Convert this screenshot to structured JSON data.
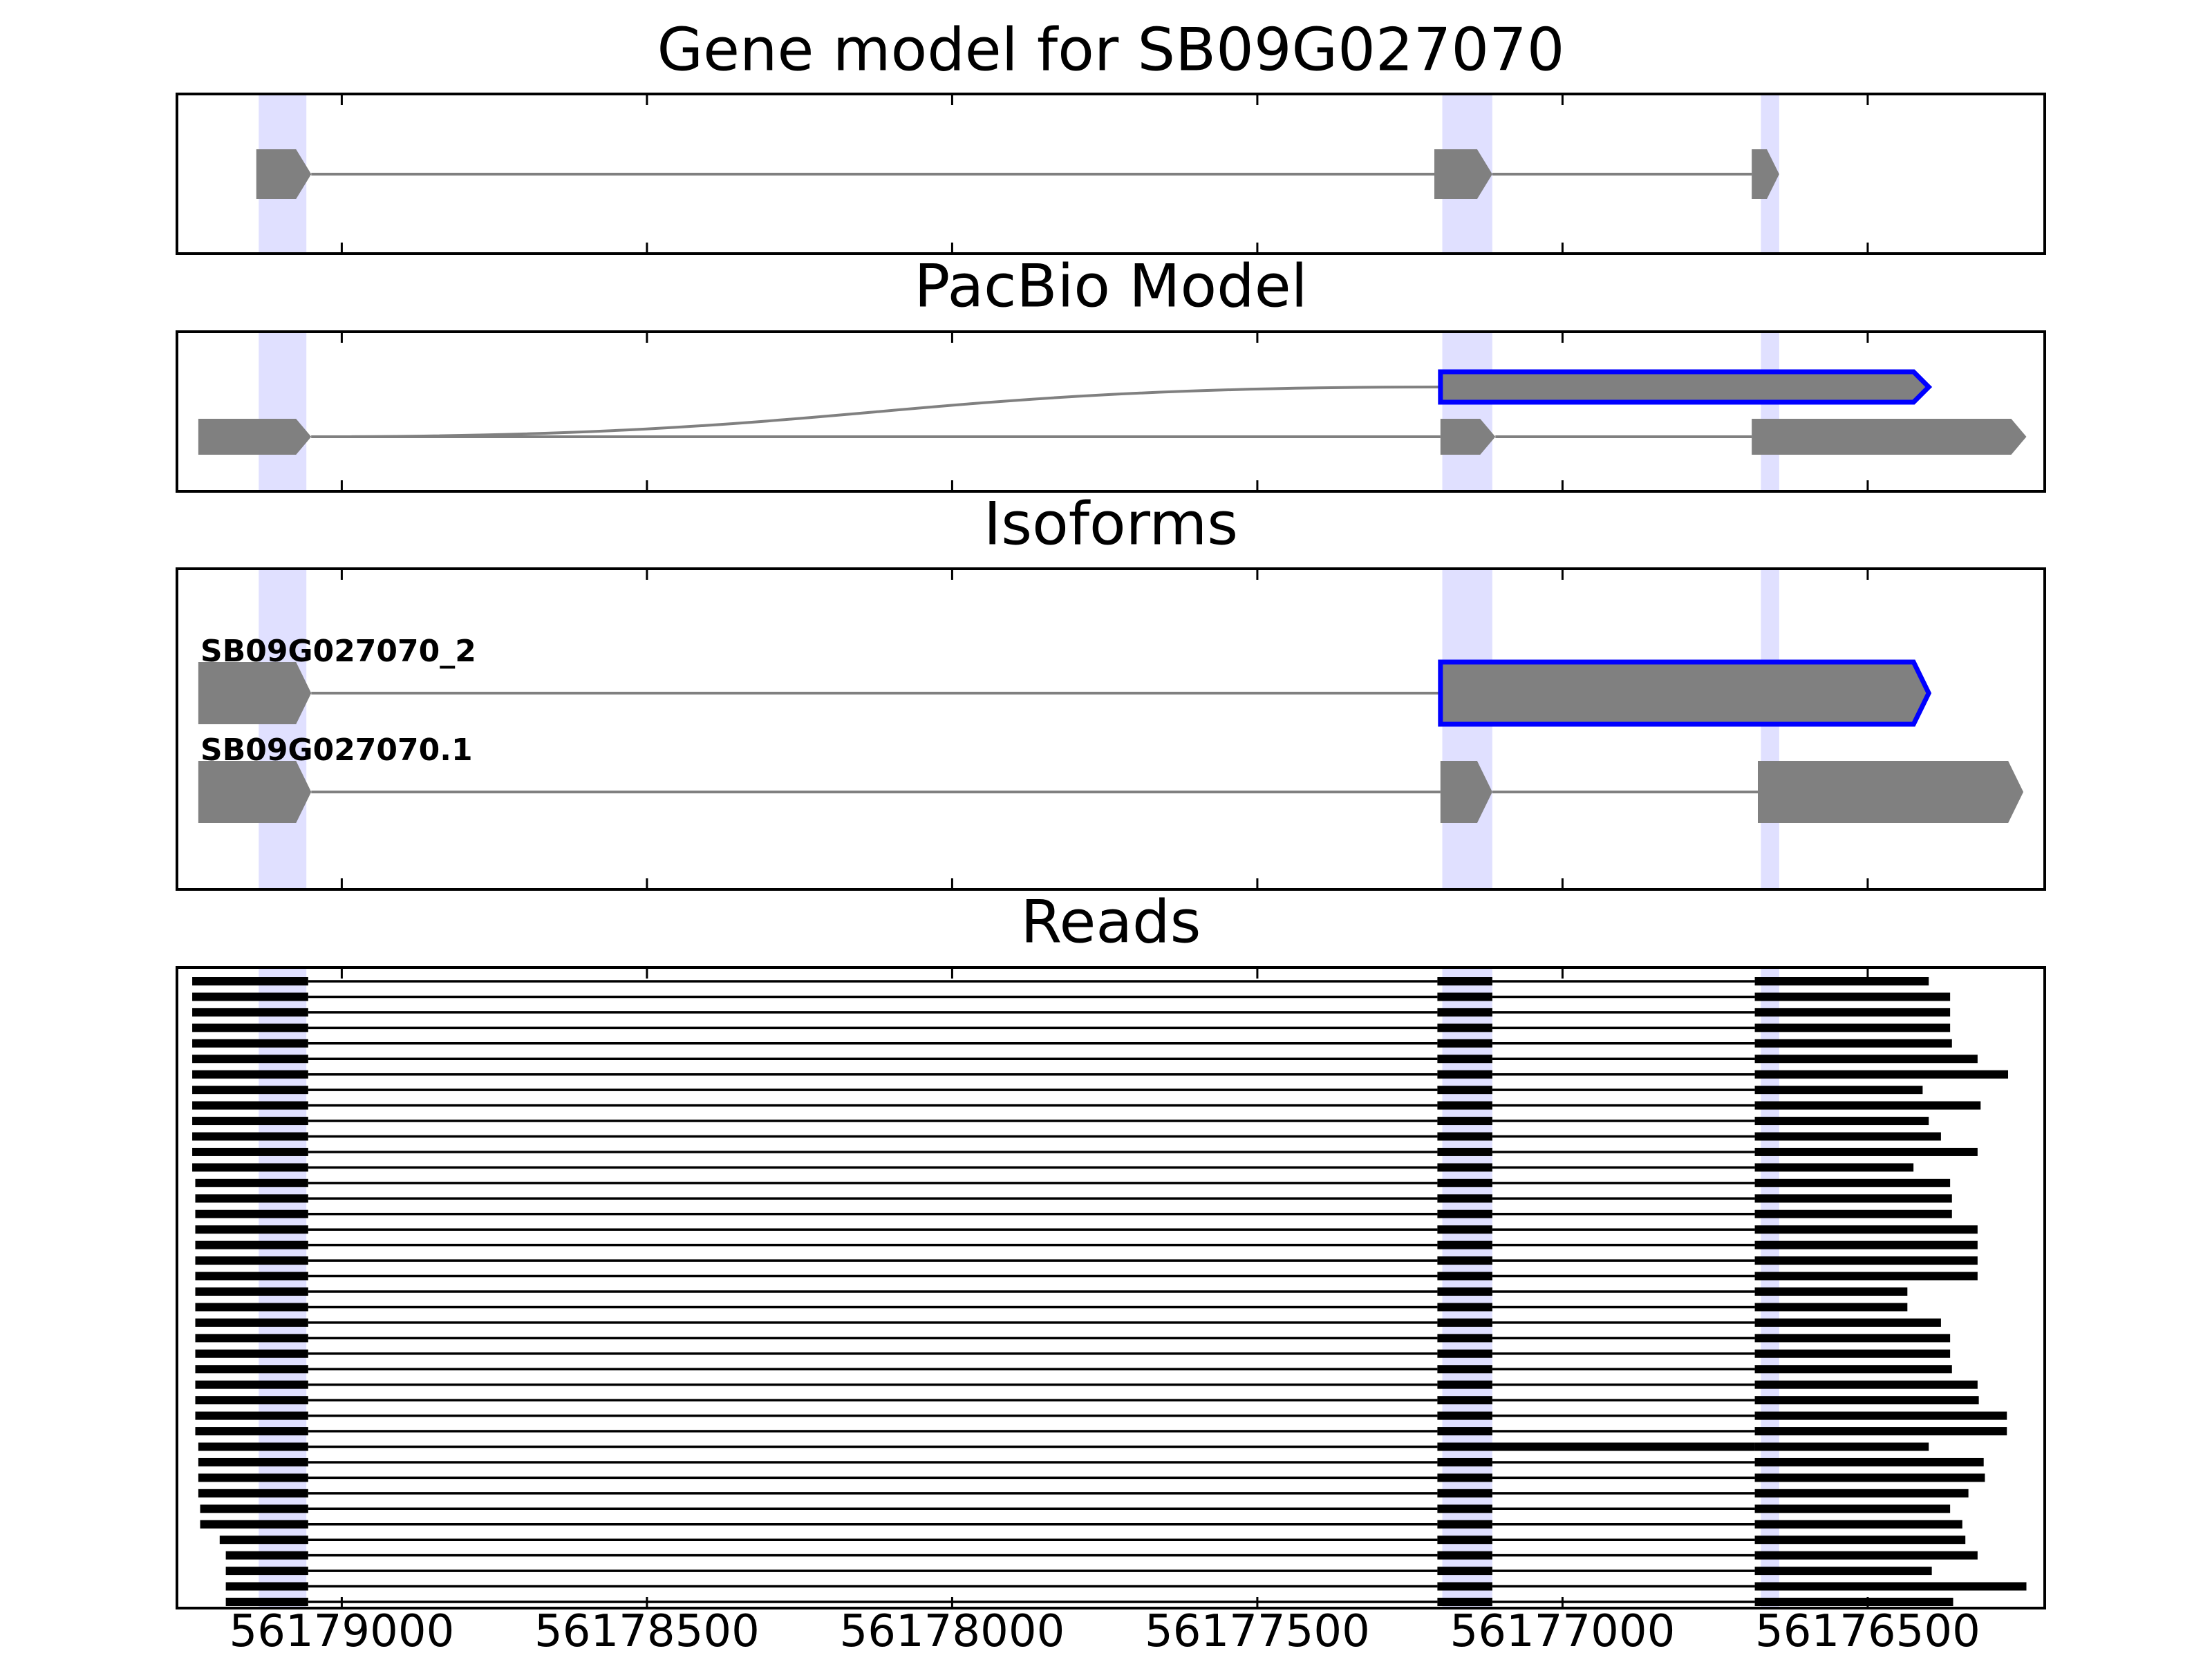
{
  "colors": {
    "exon_fill": "#808080",
    "intron_line": "#808080",
    "highlight_outline": "#0000ff",
    "junction_band": "#e0e0ff",
    "read_color": "#000000",
    "frame": "#000000"
  },
  "chart_data": [
    {
      "type": "gene_model",
      "title": "Gene model for SB09G027070",
      "x_axis": {
        "reversed": true,
        "ticks": [
          56179000,
          56178500,
          56178000,
          56177500,
          56177000,
          56176500
        ]
      },
      "xlim": [
        56179270,
        56176210
      ],
      "junction_bands": [
        [
          56179136,
          56179058
        ],
        [
          56177197,
          56177115
        ],
        [
          56176675,
          56176645
        ]
      ],
      "transcripts": [
        {
          "label": "",
          "highlight": false,
          "exons": [
            [
              56179140,
              56179050
            ],
            [
              56177210,
              56177115
            ],
            [
              56176690,
              56176645
            ]
          ]
        }
      ]
    },
    {
      "type": "pacbio_model",
      "title": "PacBio Model",
      "x_axis": {
        "reversed": true,
        "ticks": [
          56179000,
          56178500,
          56178000,
          56177500,
          56177000,
          56176500
        ]
      },
      "xlim": [
        56179270,
        56176210
      ],
      "junction_bands": [
        [
          56179136,
          56179058
        ],
        [
          56177197,
          56177115
        ],
        [
          56176675,
          56176645
        ]
      ],
      "transcripts": [
        {
          "label": "",
          "highlight": true,
          "curved_from": 56179050,
          "exons": [
            [
              56177200,
              56176400
            ]
          ]
        },
        {
          "label": "",
          "highlight": false,
          "exons": [
            [
              56179235,
              56179050
            ],
            [
              56177200,
              56177110
            ],
            [
              56176690,
              56176240
            ]
          ]
        }
      ]
    },
    {
      "type": "isoforms",
      "title": "Isoforms",
      "x_axis": {
        "reversed": true,
        "ticks": [
          56179000,
          56178500,
          56178000,
          56177500,
          56177000,
          56176500
        ]
      },
      "xlim": [
        56179270,
        56176210
      ],
      "junction_bands": [
        [
          56179136,
          56179058
        ],
        [
          56177197,
          56177115
        ],
        [
          56176675,
          56176645
        ]
      ],
      "transcripts": [
        {
          "label": "SB09G027070_2",
          "highlight": true,
          "exons": [
            [
              56179235,
              56179050
            ],
            [
              56177200,
              56176400
            ]
          ]
        },
        {
          "label": "SB09G027070.1",
          "highlight": false,
          "exons": [
            [
              56179235,
              56179050
            ],
            [
              56177200,
              56177115
            ],
            [
              56176680,
              56176245
            ]
          ]
        }
      ]
    },
    {
      "type": "reads",
      "title": "Reads",
      "x_axis": {
        "reversed": true,
        "ticks": [
          56179000,
          56178500,
          56178000,
          56177500,
          56177000,
          56176500
        ]
      },
      "tick_labels": [
        "56179000",
        "56178500",
        "56178000",
        "56177500",
        "56177000",
        "56176500"
      ],
      "xlim": [
        56179270,
        56176210
      ],
      "junction_bands": [
        [
          56179136,
          56179058
        ],
        [
          56177197,
          56177115
        ],
        [
          56176675,
          56176645
        ]
      ],
      "read_exon2": [
        56177205,
        56177115
      ],
      "read_exon3_start": 56176685,
      "reads": [
        {
          "start": 56179245,
          "end": 56176400
        },
        {
          "start": 56179245,
          "end": 56176365
        },
        {
          "start": 56179245,
          "end": 56176365
        },
        {
          "start": 56179245,
          "end": 56176365
        },
        {
          "start": 56179245,
          "end": 56176362
        },
        {
          "start": 56179245,
          "end": 56176320
        },
        {
          "start": 56179245,
          "end": 56176270
        },
        {
          "start": 56179245,
          "end": 56176410
        },
        {
          "start": 56179245,
          "end": 56176315
        },
        {
          "start": 56179245,
          "end": 56176400
        },
        {
          "start": 56179245,
          "end": 56176380
        },
        {
          "start": 56179245,
          "end": 56176320
        },
        {
          "start": 56179245,
          "end": 56176425
        },
        {
          "start": 56179240,
          "end": 56176365
        },
        {
          "start": 56179240,
          "end": 56176362
        },
        {
          "start": 56179240,
          "end": 56176362
        },
        {
          "start": 56179240,
          "end": 56176320
        },
        {
          "start": 56179240,
          "end": 56176320
        },
        {
          "start": 56179240,
          "end": 56176320
        },
        {
          "start": 56179240,
          "end": 56176320
        },
        {
          "start": 56179240,
          "end": 56176435
        },
        {
          "start": 56179240,
          "end": 56176435
        },
        {
          "start": 56179240,
          "end": 56176380
        },
        {
          "start": 56179240,
          "end": 56176365
        },
        {
          "start": 56179240,
          "end": 56176365
        },
        {
          "start": 56179240,
          "end": 56176362
        },
        {
          "start": 56179240,
          "end": 56176320
        },
        {
          "start": 56179240,
          "end": 56176318
        },
        {
          "start": 56179240,
          "end": 56176272
        },
        {
          "start": 56179240,
          "end": 56176272
        },
        {
          "start": 56179235,
          "end": 56176400,
          "skips_exon2": true
        },
        {
          "start": 56179235,
          "end": 56176310
        },
        {
          "start": 56179235,
          "end": 56176308
        },
        {
          "start": 56179235,
          "end": 56176335
        },
        {
          "start": 56179232,
          "end": 56176365
        },
        {
          "start": 56179232,
          "end": 56176345
        },
        {
          "start": 56179200,
          "end": 56176340
        },
        {
          "start": 56179190,
          "end": 56176320
        },
        {
          "start": 56179190,
          "end": 56176395
        },
        {
          "start": 56179190,
          "end": 56176240
        },
        {
          "start": 56179190,
          "end": 56176360
        }
      ]
    }
  ]
}
